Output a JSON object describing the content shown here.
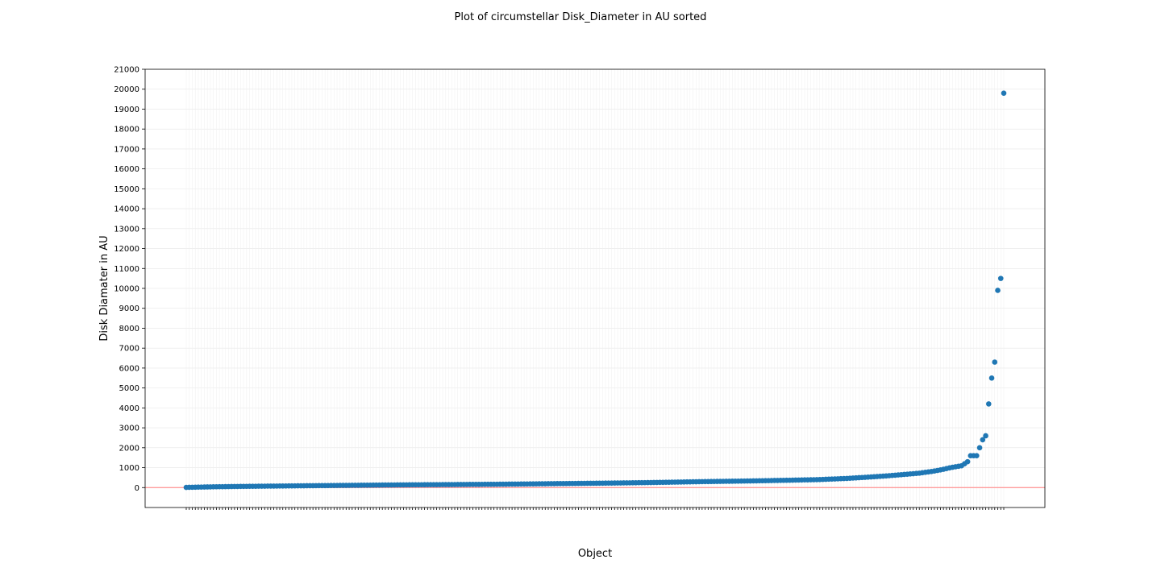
{
  "chart_data": {
    "type": "scatter",
    "title": "Plot of circumstellar Disk_Diameter in AU sorted",
    "xlabel": "Object",
    "ylabel": "Disk Diamater in AU",
    "ylim": [
      -1000,
      21000
    ],
    "yticks": [
      0,
      1000,
      2000,
      3000,
      4000,
      5000,
      6000,
      7000,
      8000,
      9000,
      10000,
      11000,
      12000,
      13000,
      14000,
      15000,
      16000,
      17000,
      18000,
      19000,
      20000,
      21000
    ],
    "grid": true,
    "reference_line": {
      "y": 0,
      "color": "#ff9c9c"
    },
    "point_color": "#1f77b4",
    "n_points": 272,
    "sorted_values_anchors": [
      [
        0,
        10
      ],
      [
        10,
        40
      ],
      [
        20,
        60
      ],
      [
        30,
        75
      ],
      [
        40,
        90
      ],
      [
        55,
        110
      ],
      [
        70,
        130
      ],
      [
        90,
        150
      ],
      [
        110,
        170
      ],
      [
        130,
        200
      ],
      [
        150,
        230
      ],
      [
        165,
        260
      ],
      [
        180,
        300
      ],
      [
        195,
        330
      ],
      [
        210,
        370
      ],
      [
        220,
        400
      ],
      [
        230,
        460
      ],
      [
        238,
        530
      ],
      [
        245,
        600
      ],
      [
        250,
        660
      ],
      [
        255,
        720
      ],
      [
        260,
        820
      ],
      [
        263,
        900
      ],
      [
        266,
        1000
      ],
      [
        268,
        1050
      ],
      [
        270,
        1100
      ],
      [
        271,
        1200
      ],
      [
        272,
        1300
      ]
    ],
    "top_values": [
      1600,
      1600,
      1600,
      2000,
      2400,
      2600,
      4200,
      5500,
      6300,
      9900,
      10500,
      19800
    ]
  }
}
